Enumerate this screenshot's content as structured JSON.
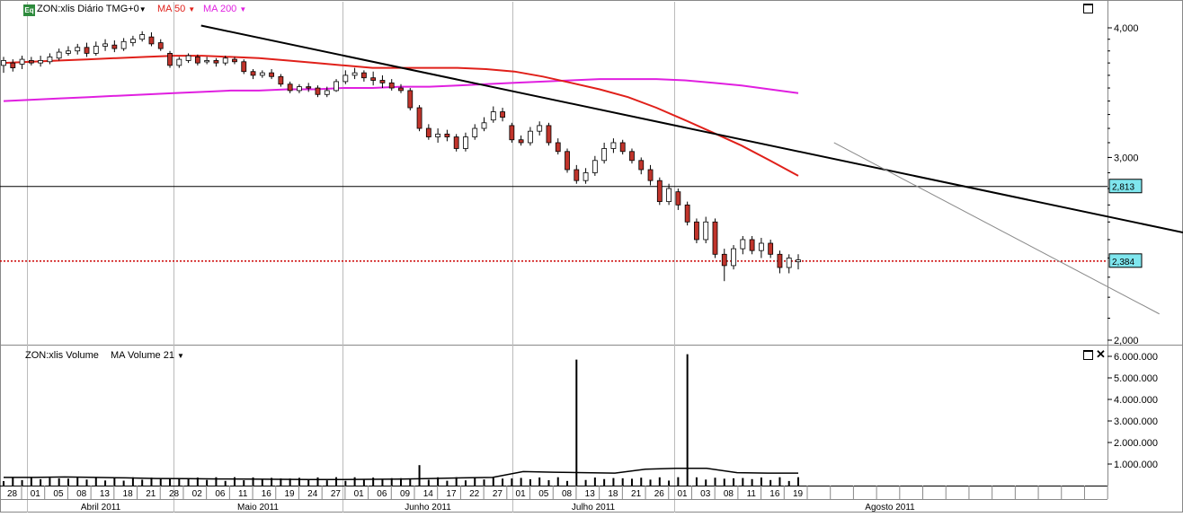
{
  "header": {
    "badge": "Eq",
    "symbol_label": "ZON:xlis Diário TMG+0",
    "ma50_label": "MA 50",
    "ma200_label": "MA 200",
    "volume_label": "ZON:xlis Volume",
    "volume_ma_label": "MA Volume  21"
  },
  "colors": {
    "up": "#ffffff",
    "down": "#c0342b",
    "ma50": "#e0201a",
    "ma200": "#e01fe0",
    "trend": "#000000",
    "thin_trend": "#888888",
    "last_price_line": "#cc0000",
    "badge": "#2e8b3d",
    "price_label_bg": "#7fe6ee"
  },
  "icons": [
    "dropdown-caret-icon",
    "maximize-icon",
    "close-icon"
  ],
  "chart_data": [
    {
      "type": "candlestick",
      "title": "ZON:xlis Diário TMG+0",
      "y_scale": "log",
      "ylim": [
        2.0,
        4.1
      ],
      "y_ticks": [
        "4,000",
        "3,000",
        "2,000"
      ],
      "x_tick_labels": [
        "28",
        "01",
        "05",
        "08",
        "13",
        "18",
        "21",
        "28",
        "02",
        "06",
        "11",
        "16",
        "19",
        "24",
        "27",
        "01",
        "06",
        "09",
        "14",
        "17",
        "22",
        "27",
        "01",
        "05",
        "08",
        "13",
        "18",
        "21",
        "26",
        "01",
        "03",
        "08",
        "11",
        "16",
        "19"
      ],
      "month_labels": [
        "Abril 2011",
        "Maio 2011",
        "Junho 2011",
        "Julho 2011",
        "Agosto 2011"
      ],
      "price_labels": [
        "2,813",
        "2,384"
      ],
      "horizontal_line": 2.813,
      "last_price": 2.384,
      "series": [
        {
          "name": "MA 50",
          "values": [
            3.7,
            3.71,
            3.72,
            3.73,
            3.74,
            3.75,
            3.76,
            3.76,
            3.75,
            3.74,
            3.72,
            3.7,
            3.68,
            3.66,
            3.66,
            3.66,
            3.66,
            3.65,
            3.63,
            3.59,
            3.54,
            3.49,
            3.43,
            3.35,
            3.26,
            3.17,
            3.08,
            2.98,
            2.88
          ]
        },
        {
          "name": "MA 200",
          "values": [
            3.4,
            3.41,
            3.42,
            3.43,
            3.44,
            3.45,
            3.46,
            3.47,
            3.48,
            3.48,
            3.49,
            3.49,
            3.5,
            3.5,
            3.51,
            3.51,
            3.52,
            3.53,
            3.54,
            3.55,
            3.56,
            3.57,
            3.57,
            3.57,
            3.56,
            3.54,
            3.52,
            3.49,
            3.46
          ]
        }
      ],
      "candles": [
        [
          3.68,
          3.72,
          3.62,
          3.75
        ],
        [
          3.7,
          3.66,
          3.63,
          3.73
        ],
        [
          3.69,
          3.73,
          3.65,
          3.76
        ],
        [
          3.72,
          3.7,
          3.68,
          3.75
        ],
        [
          3.7,
          3.72,
          3.67,
          3.76
        ],
        [
          3.71,
          3.75,
          3.69,
          3.78
        ],
        [
          3.74,
          3.79,
          3.72,
          3.82
        ],
        [
          3.78,
          3.8,
          3.76,
          3.84
        ],
        [
          3.8,
          3.83,
          3.77,
          3.86
        ],
        [
          3.83,
          3.78,
          3.75,
          3.87
        ],
        [
          3.78,
          3.84,
          3.76,
          3.88
        ],
        [
          3.84,
          3.86,
          3.8,
          3.9
        ],
        [
          3.85,
          3.82,
          3.79,
          3.89
        ],
        [
          3.82,
          3.88,
          3.8,
          3.91
        ],
        [
          3.87,
          3.9,
          3.84,
          3.93
        ],
        [
          3.9,
          3.94,
          3.88,
          3.97
        ],
        [
          3.92,
          3.86,
          3.84,
          3.96
        ],
        [
          3.87,
          3.82,
          3.8,
          3.9
        ],
        [
          3.78,
          3.68,
          3.66,
          3.8
        ],
        [
          3.68,
          3.73,
          3.66,
          3.75
        ],
        [
          3.72,
          3.76,
          3.7,
          3.78
        ],
        [
          3.75,
          3.7,
          3.68,
          3.77
        ],
        [
          3.71,
          3.72,
          3.69,
          3.75
        ],
        [
          3.72,
          3.7,
          3.67,
          3.74
        ],
        [
          3.7,
          3.74,
          3.68,
          3.76
        ],
        [
          3.73,
          3.71,
          3.69,
          3.75
        ],
        [
          3.71,
          3.63,
          3.61,
          3.73
        ],
        [
          3.63,
          3.6,
          3.57,
          3.65
        ],
        [
          3.6,
          3.62,
          3.58,
          3.64
        ],
        [
          3.62,
          3.59,
          3.57,
          3.65
        ],
        [
          3.59,
          3.53,
          3.51,
          3.61
        ],
        [
          3.53,
          3.48,
          3.46,
          3.55
        ],
        [
          3.48,
          3.51,
          3.46,
          3.53
        ],
        [
          3.51,
          3.5,
          3.47,
          3.54
        ],
        [
          3.5,
          3.45,
          3.43,
          3.52
        ],
        [
          3.45,
          3.48,
          3.43,
          3.51
        ],
        [
          3.48,
          3.55,
          3.47,
          3.57
        ],
        [
          3.55,
          3.6,
          3.53,
          3.64
        ],
        [
          3.6,
          3.62,
          3.57,
          3.66
        ],
        [
          3.62,
          3.58,
          3.55,
          3.64
        ],
        [
          3.58,
          3.56,
          3.52,
          3.63
        ],
        [
          3.56,
          3.54,
          3.5,
          3.6
        ],
        [
          3.54,
          3.5,
          3.48,
          3.57
        ],
        [
          3.5,
          3.48,
          3.46,
          3.53
        ],
        [
          3.48,
          3.35,
          3.33,
          3.5
        ],
        [
          3.35,
          3.2,
          3.18,
          3.37
        ],
        [
          3.2,
          3.14,
          3.12,
          3.23
        ],
        [
          3.14,
          3.16,
          3.1,
          3.2
        ],
        [
          3.16,
          3.14,
          3.11,
          3.19
        ],
        [
          3.14,
          3.06,
          3.04,
          3.16
        ],
        [
          3.06,
          3.14,
          3.04,
          3.17
        ],
        [
          3.14,
          3.2,
          3.12,
          3.23
        ],
        [
          3.2,
          3.24,
          3.18,
          3.28
        ],
        [
          3.26,
          3.32,
          3.24,
          3.36
        ],
        [
          3.32,
          3.28,
          3.25,
          3.35
        ],
        [
          3.22,
          3.12,
          3.1,
          3.24
        ],
        [
          3.12,
          3.1,
          3.08,
          3.15
        ],
        [
          3.1,
          3.18,
          3.08,
          3.21
        ],
        [
          3.18,
          3.22,
          3.15,
          3.25
        ],
        [
          3.22,
          3.1,
          3.08,
          3.24
        ],
        [
          3.1,
          3.04,
          3.02,
          3.13
        ],
        [
          3.04,
          2.92,
          2.9,
          3.06
        ],
        [
          2.92,
          2.85,
          2.83,
          2.95
        ],
        [
          2.85,
          2.9,
          2.83,
          2.93
        ],
        [
          2.9,
          2.98,
          2.88,
          3.01
        ],
        [
          2.98,
          3.06,
          2.96,
          3.1
        ],
        [
          3.06,
          3.1,
          3.03,
          3.13
        ],
        [
          3.1,
          3.04,
          3.02,
          3.12
        ],
        [
          3.04,
          2.98,
          2.96,
          3.06
        ],
        [
          2.98,
          2.92,
          2.89,
          3.0
        ],
        [
          2.92,
          2.85,
          2.82,
          2.95
        ],
        [
          2.85,
          2.72,
          2.7,
          2.87
        ],
        [
          2.72,
          2.8,
          2.7,
          2.83
        ],
        [
          2.78,
          2.7,
          2.67,
          2.8
        ],
        [
          2.7,
          2.6,
          2.58,
          2.72
        ],
        [
          2.6,
          2.5,
          2.48,
          2.62
        ],
        [
          2.5,
          2.6,
          2.48,
          2.63
        ],
        [
          2.6,
          2.42,
          2.4,
          2.62
        ],
        [
          2.42,
          2.36,
          2.28,
          2.45
        ],
        [
          2.36,
          2.45,
          2.34,
          2.47
        ],
        [
          2.45,
          2.5,
          2.42,
          2.52
        ],
        [
          2.5,
          2.44,
          2.42,
          2.52
        ],
        [
          2.44,
          2.48,
          2.4,
          2.51
        ],
        [
          2.48,
          2.42,
          2.4,
          2.5
        ],
        [
          2.42,
          2.35,
          2.32,
          2.44
        ],
        [
          2.35,
          2.4,
          2.32,
          2.42
        ],
        [
          2.38,
          2.39,
          2.34,
          2.42
        ]
      ],
      "trendlines": [
        {
          "name": "long",
          "from": [
            0.17,
            4.02
          ],
          "to": [
            1.0,
            2.54
          ]
        },
        {
          "name": "short",
          "from": [
            0.705,
            3.1
          ],
          "to": [
            0.98,
            2.12
          ]
        }
      ]
    },
    {
      "type": "bar",
      "title": "ZON:xlis Volume",
      "y_ticks": [
        "6.000.000",
        "5.000.000",
        "4.000.000",
        "3.000.000",
        "2.000.000",
        "1.000.000"
      ],
      "ylim": [
        0,
        6300000
      ],
      "spikes": [
        {
          "index": 62,
          "value": 5850000
        },
        {
          "index": 74,
          "value": 6100000
        }
      ],
      "typical_volume": 300000,
      "series": [
        {
          "name": "MA Volume  21",
          "values": [
            380000,
            380000,
            400000,
            380000,
            360000,
            330000,
            320000,
            310000,
            300000,
            290000,
            280000,
            280000,
            290000,
            300000,
            330000,
            360000,
            380000,
            650000,
            620000,
            600000,
            580000,
            760000,
            800000,
            800000,
            600000,
            580000,
            580000
          ]
        }
      ]
    }
  ]
}
